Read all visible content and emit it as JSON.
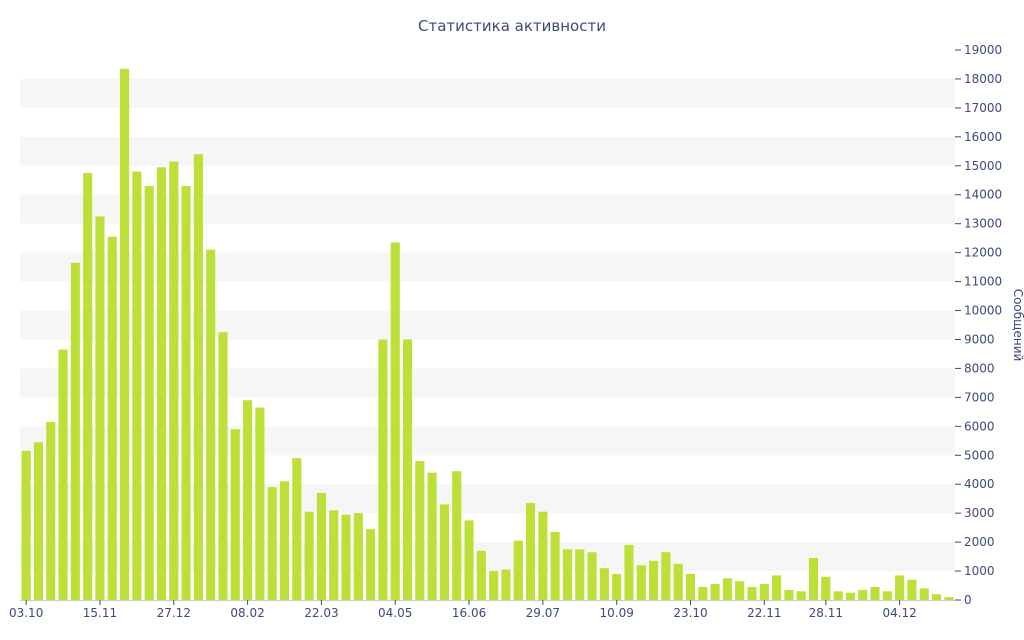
{
  "chart_data": {
    "type": "bar",
    "title": "Статистика активности",
    "xlabel": "",
    "ylabel": "Сообщений",
    "ylim": [
      0,
      19000
    ],
    "y_ticks": [
      0,
      1000,
      2000,
      3000,
      4000,
      5000,
      6000,
      7000,
      8000,
      9000,
      10000,
      11000,
      12000,
      13000,
      14000,
      15000,
      16000,
      17000,
      18000,
      19000
    ],
    "y_axis_side": "right",
    "grid": "horizontal alternating bands",
    "bar_color": "#bde038",
    "band_color": "#f6f6f6",
    "text_color": "#3d4a7a",
    "x_tick_labels": [
      {
        "index": 0,
        "label": "03.10"
      },
      {
        "index": 6,
        "label": "15.11"
      },
      {
        "index": 12,
        "label": "27.12"
      },
      {
        "index": 18,
        "label": "08.02"
      },
      {
        "index": 24,
        "label": "22.03"
      },
      {
        "index": 30,
        "label": "04.05"
      },
      {
        "index": 36,
        "label": "16.06"
      },
      {
        "index": 42,
        "label": "29.07"
      },
      {
        "index": 48,
        "label": "10.09"
      },
      {
        "index": 54,
        "label": "23.10"
      },
      {
        "index": 60,
        "label": "22.11"
      },
      {
        "index": 65,
        "label": "28.11"
      },
      {
        "index": 71,
        "label": "04.12"
      }
    ],
    "values": [
      5150,
      5450,
      6150,
      8650,
      11650,
      14750,
      13250,
      12550,
      18350,
      14800,
      14300,
      14950,
      15150,
      14300,
      15400,
      12100,
      9250,
      5900,
      6900,
      6650,
      3900,
      4100,
      4900,
      3050,
      3700,
      3100,
      2950,
      3000,
      2450,
      9000,
      12350,
      9000,
      4800,
      4400,
      3300,
      4450,
      2750,
      1700,
      1000,
      1050,
      2050,
      3350,
      3050,
      2350,
      1750,
      1750,
      1650,
      1100,
      900,
      1900,
      1200,
      1350,
      1650,
      1250,
      900,
      450,
      550,
      750,
      650,
      450,
      550,
      850,
      350,
      300,
      1450,
      800,
      300,
      250,
      350,
      450,
      300,
      850,
      700,
      400,
      200,
      100
    ]
  }
}
